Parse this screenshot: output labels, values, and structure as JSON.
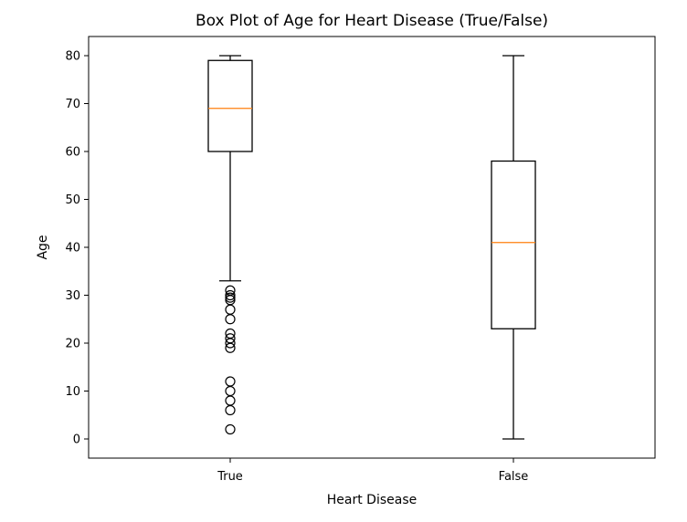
{
  "chart_data": {
    "type": "box",
    "title": "Box Plot of Age for Heart Disease (True/False)",
    "xlabel": "Heart Disease",
    "ylabel": "Age",
    "ylim": [
      -4,
      84
    ],
    "yticks": [
      0,
      10,
      20,
      30,
      40,
      50,
      60,
      70,
      80
    ],
    "categories": [
      "True",
      "False"
    ],
    "boxes": [
      {
        "category": "True",
        "whisker_low": 33,
        "q1": 60,
        "median": 69,
        "q3": 79,
        "whisker_high": 80,
        "outliers": [
          31,
          30,
          29.5,
          29,
          27,
          25,
          22,
          21,
          20,
          19,
          12,
          10,
          8,
          6,
          2
        ]
      },
      {
        "category": "False",
        "whisker_low": 0,
        "q1": 23,
        "median": 41,
        "q3": 58,
        "whisker_high": 80,
        "outliers": []
      }
    ],
    "grid": false,
    "colors": {
      "box": "#000000",
      "median": "#ff7f0e",
      "outlier": "#000000"
    }
  }
}
